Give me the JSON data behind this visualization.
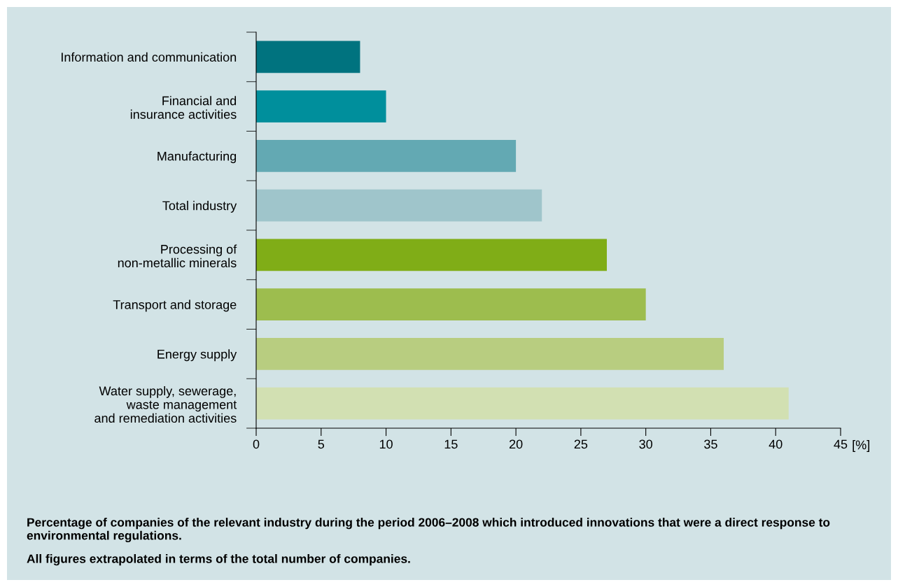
{
  "chart_data": {
    "type": "bar",
    "orientation": "horizontal",
    "categories": [
      "Information and communication",
      "Financial and\ninsurance activities",
      "Manufacturing",
      "Total industry",
      "Processing of\nnon-metallic minerals",
      "Transport and storage",
      "Energy supply",
      "Water supply, sewerage,\nwaste management\nand remediation activities"
    ],
    "values": [
      8,
      10,
      20,
      22,
      27,
      30,
      36,
      41
    ],
    "colors": [
      "#00737f",
      "#008f9c",
      "#63a9b3",
      "#9fc5cb",
      "#80ad17",
      "#9dbd4e",
      "#b8cd80",
      "#d2e0b2"
    ],
    "xlabel": "[%]",
    "xlim": [
      0,
      45
    ],
    "xticks": [
      0,
      5,
      10,
      15,
      20,
      25,
      30,
      35,
      40,
      45
    ],
    "grid": false,
    "legend": false,
    "annotations": [
      "Percentage of companies of the relevant industry during the period 2006–2008 which introduced innovations that were a direct response to environmental regulations.",
      "All figures extrapolated in terms of the total number of companies."
    ]
  }
}
